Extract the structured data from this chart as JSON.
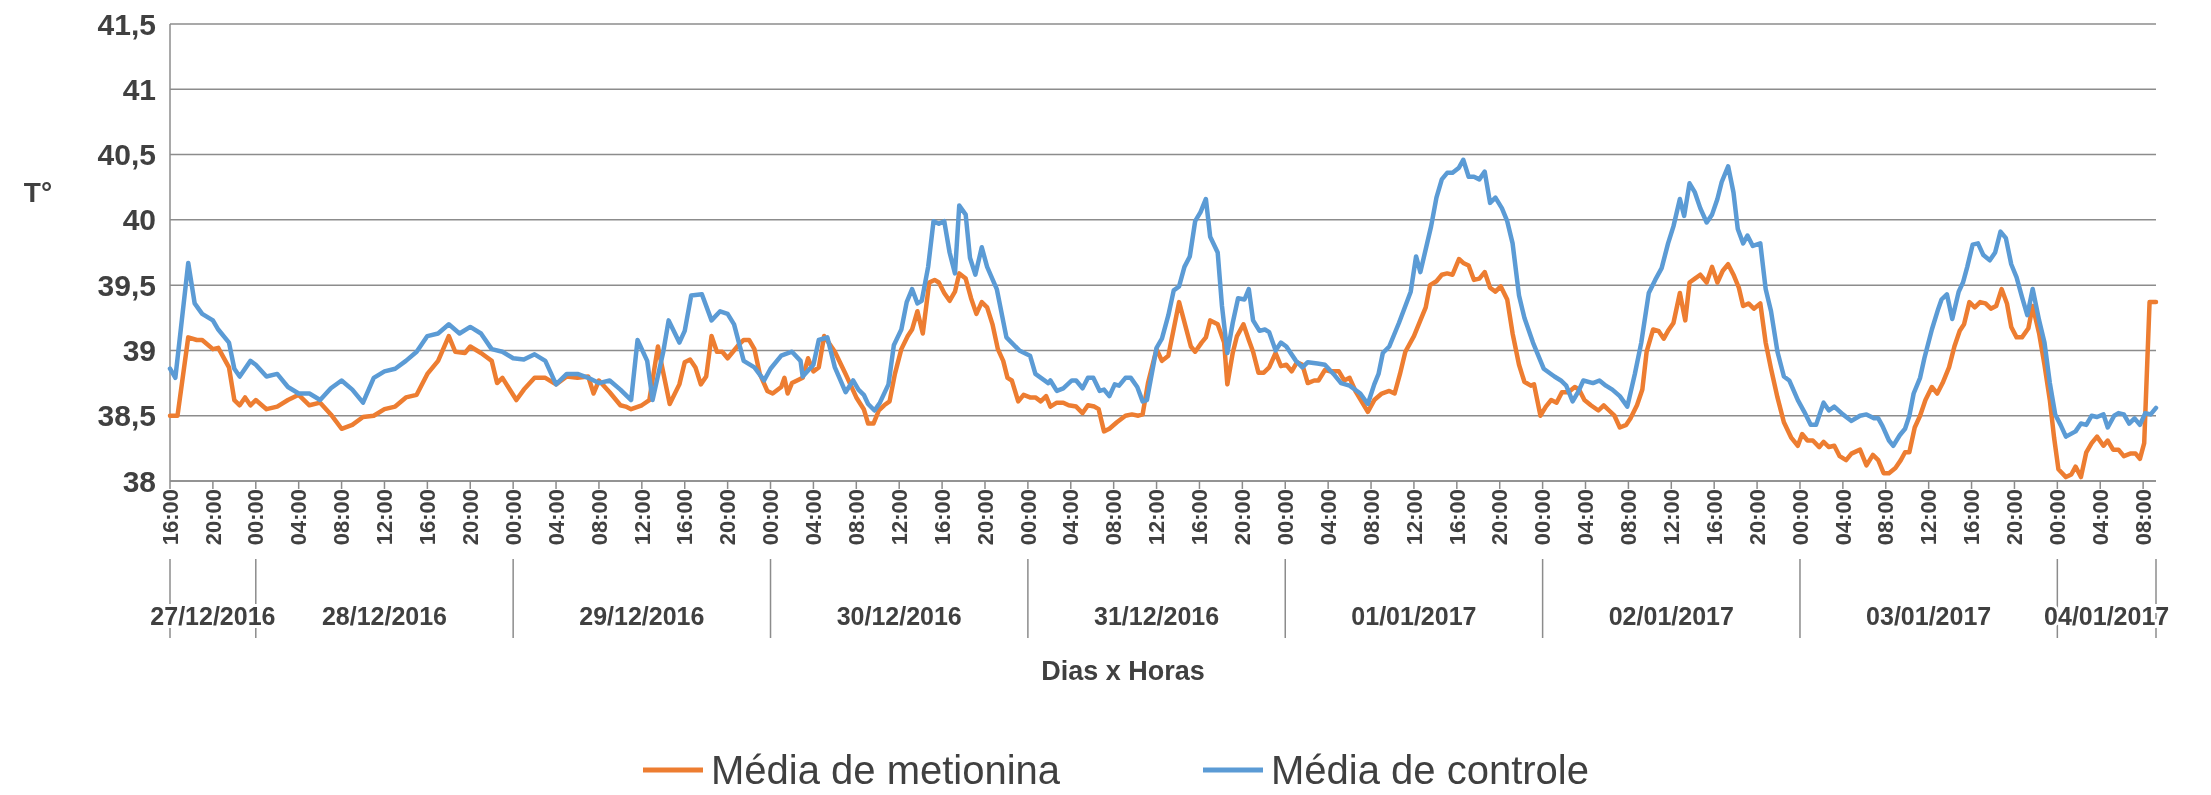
{
  "chart_data": {
    "type": "line",
    "xlabel": "Dias x Horas",
    "ylabel": "T°",
    "xlim": [
      "2016-12-27T16:00",
      "2017-01-04T09:12"
    ],
    "ylim": [
      38,
      41.5
    ],
    "yticks": [
      38,
      {
        "value": 38.5,
        "label": "38,5"
      },
      39,
      {
        "value": 39.5,
        "label": "39,5"
      },
      40,
      {
        "value": 40.5,
        "label": "40,5"
      },
      41,
      {
        "value": 41.5,
        "label": "41,5"
      }
    ],
    "xticks": [
      {
        "value": "2016-12-27T16:00",
        "label": "16:00"
      },
      {
        "value": "2016-12-27T20:00",
        "label": "20:00"
      },
      {
        "value": "2016-12-28T00:00",
        "label": "00:00"
      },
      {
        "value": "2016-12-28T04:00",
        "label": "04:00"
      },
      {
        "value": "2016-12-28T08:00",
        "label": "08:00"
      },
      {
        "value": "2016-12-28T12:00",
        "label": "12:00"
      },
      {
        "value": "2016-12-28T16:00",
        "label": "16:00"
      },
      {
        "value": "2016-12-28T20:00",
        "label": "20:00"
      },
      {
        "value": "2016-12-29T00:00",
        "label": "00:00"
      },
      {
        "value": "2016-12-29T04:00",
        "label": "04:00"
      },
      {
        "value": "2016-12-29T08:00",
        "label": "08:00"
      },
      {
        "value": "2016-12-29T12:00",
        "label": "12:00"
      },
      {
        "value": "2016-12-29T16:00",
        "label": "16:00"
      },
      {
        "value": "2016-12-29T20:00",
        "label": "20:00"
      },
      {
        "value": "2016-12-30T00:00",
        "label": "00:00"
      },
      {
        "value": "2016-12-30T04:00",
        "label": "04:00"
      },
      {
        "value": "2016-12-30T08:00",
        "label": "08:00"
      },
      {
        "value": "2016-12-30T12:00",
        "label": "12:00"
      },
      {
        "value": "2016-12-30T16:00",
        "label": "16:00"
      },
      {
        "value": "2016-12-30T20:00",
        "label": "20:00"
      },
      {
        "value": "2016-12-31T00:00",
        "label": "00:00"
      },
      {
        "value": "2016-12-31T04:00",
        "label": "04:00"
      },
      {
        "value": "2016-12-31T08:00",
        "label": "08:00"
      },
      {
        "value": "2016-12-31T12:00",
        "label": "12:00"
      },
      {
        "value": "2016-12-31T16:00",
        "label": "16:00"
      },
      {
        "value": "2016-12-31T20:00",
        "label": "20:00"
      },
      {
        "value": "2017-01-01T00:00",
        "label": "00:00"
      },
      {
        "value": "2017-01-01T04:00",
        "label": "04:00"
      },
      {
        "value": "2017-01-01T08:00",
        "label": "08:00"
      },
      {
        "value": "2017-01-01T12:00",
        "label": "12:00"
      },
      {
        "value": "2017-01-01T16:00",
        "label": "16:00"
      },
      {
        "value": "2017-01-01T20:00",
        "label": "20:00"
      },
      {
        "value": "2017-01-02T00:00",
        "label": "00:00"
      },
      {
        "value": "2017-01-02T04:00",
        "label": "04:00"
      },
      {
        "value": "2017-01-02T08:00",
        "label": "08:00"
      },
      {
        "value": "2017-01-02T12:00",
        "label": "12:00"
      },
      {
        "value": "2017-01-02T16:00",
        "label": "16:00"
      },
      {
        "value": "2017-01-02T20:00",
        "label": "20:00"
      },
      {
        "value": "2017-01-03T00:00",
        "label": "00:00"
      },
      {
        "value": "2017-01-03T04:00",
        "label": "04:00"
      },
      {
        "value": "2017-01-03T08:00",
        "label": "08:00"
      },
      {
        "value": "2017-01-03T12:00",
        "label": "12:00"
      },
      {
        "value": "2017-01-03T16:00",
        "label": "16:00"
      },
      {
        "value": "2017-01-03T20:00",
        "label": "20:00"
      },
      {
        "value": "2017-01-04T00:00",
        "label": "00:00"
      },
      {
        "value": "2017-01-04T04:00",
        "label": "04:00"
      },
      {
        "value": "2017-01-04T08:00",
        "label": "08:00"
      }
    ],
    "annotations": [
      "27/12/2016",
      "28/12/2016",
      "29/12/2016",
      "30/12/2016",
      "31/12/2016",
      "01/01/2017",
      "02/01/2017",
      "03/01/2017",
      "04/01/2017"
    ],
    "grid": "y",
    "legend": "bottom",
    "line_style": "solid",
    "marker": "none",
    "series": [
      {
        "name": "Média de metionina",
        "color": "#ed7d31",
        "x": [
          "2016-12-27T16:00",
          "2016-12-27T16:42",
          "2016-12-27T17:42",
          "2016-12-27T18:30",
          "2016-12-27T19:00",
          "2016-12-27T20:00",
          "2016-12-27T20:30",
          "2016-12-27T21:30",
          "2016-12-27T22:00",
          "2016-12-27T22:30",
          "2016-12-27T23:00",
          "2016-12-27T23:30",
          "2016-12-28T00:00",
          "2016-12-28T01:00",
          "2016-12-28T02:00",
          "2016-12-28T03:00",
          "2016-12-28T04:00",
          "2016-12-28T04:30",
          "2016-12-28T05:00",
          "2016-12-28T06:00",
          "2016-12-28T07:00",
          "2016-12-28T08:00",
          "2016-12-28T09:00",
          "2016-12-28T10:00",
          "2016-12-28T11:00",
          "2016-12-28T12:00",
          "2016-12-28T13:00",
          "2016-12-28T14:00",
          "2016-12-28T15:00",
          "2016-12-28T16:00",
          "2016-12-28T17:00",
          "2016-12-28T18:00",
          "2016-12-28T18:36",
          "2016-12-28T19:30",
          "2016-12-28T20:00",
          "2016-12-28T21:00",
          "2016-12-28T22:00",
          "2016-12-28T22:30",
          "2016-12-28T23:00",
          "2016-12-29T00:18",
          "2016-12-29T01:00",
          "2016-12-29T02:00",
          "2016-12-29T03:00",
          "2016-12-29T04:00",
          "2016-12-29T05:00",
          "2016-12-29T06:00",
          "2016-12-29T07:00",
          "2016-12-29T07:30",
          "2016-12-29T08:00",
          "2016-12-29T09:00",
          "2016-12-29T10:00",
          "2016-12-29T10:30",
          "2016-12-29T11:00",
          "2016-12-29T12:00",
          "2016-12-29T12:42",
          "2016-12-29T13:30",
          "2016-12-29T14:36",
          "2016-12-29T15:30",
          "2016-12-29T16:00",
          "2016-12-29T16:30",
          "2016-12-29T17:00",
          "2016-12-29T17:30",
          "2016-12-29T18:00",
          "2016-12-29T18:30",
          "2016-12-29T19:00",
          "2016-12-29T19:30",
          "2016-12-29T20:00",
          "2016-12-29T21:00",
          "2016-12-29T21:30",
          "2016-12-29T22:00",
          "2016-12-29T22:30",
          "2016-12-29T23:00",
          "2016-12-29T23:42",
          "2016-12-30T00:12",
          "2016-12-30T01:00",
          "2016-12-30T01:18",
          "2016-12-30T01:36",
          "2016-12-30T02:00",
          "2016-12-30T03:00",
          "2016-12-30T03:30",
          "2016-12-30T04:00",
          "2016-12-30T04:30",
          "2016-12-30T05:00",
          "2016-12-30T06:00",
          "2016-12-30T07:00",
          "2016-12-30T08:00",
          "2016-12-30T08:42",
          "2016-12-30T09:06",
          "2016-12-30T09:36",
          "2016-12-30T10:06",
          "2016-12-30T10:36",
          "2016-12-30T11:06",
          "2016-12-30T11:36",
          "2016-12-30T12:12",
          "2016-12-30T12:48",
          "2016-12-30T13:12",
          "2016-12-30T13:42",
          "2016-12-30T14:12",
          "2016-12-30T14:48",
          "2016-12-30T15:18",
          "2016-12-30T15:42",
          "2016-12-30T16:12",
          "2016-12-30T16:42",
          "2016-12-30T17:12",
          "2016-12-30T17:36",
          "2016-12-30T18:12",
          "2016-12-30T18:42",
          "2016-12-30T19:12",
          "2016-12-30T19:42",
          "2016-12-30T20:12",
          "2016-12-30T20:42",
          "2016-12-30T21:12",
          "2016-12-30T21:42",
          "2016-12-30T22:06",
          "2016-12-30T22:30",
          "2016-12-30T23:06",
          "2016-12-30T23:36",
          "2016-12-31T00:12",
          "2016-12-31T00:42",
          "2016-12-31T01:12",
          "2016-12-31T01:42",
          "2016-12-31T02:06",
          "2016-12-31T02:42",
          "2016-12-31T03:18",
          "2016-12-31T03:48",
          "2016-12-31T04:30",
          "2016-12-31T05:06",
          "2016-12-31T05:36",
          "2016-12-31T06:12",
          "2016-12-31T06:36",
          "2016-12-31T07:06",
          "2016-12-31T07:36",
          "2016-12-31T08:18",
          "2016-12-31T09:06",
          "2016-12-31T09:42",
          "2016-12-31T10:18",
          "2016-12-31T10:42",
          "2016-12-31T11:12",
          "2016-12-31T12:00",
          "2016-12-31T12:30",
          "2016-12-31T13:06",
          "2016-12-31T14:06",
          "2016-12-31T15:12",
          "2016-12-31T15:36",
          "2016-12-31T16:12",
          "2016-12-31T16:36",
          "2016-12-31T17:00",
          "2016-12-31T17:42",
          "2016-12-31T18:18",
          "2016-12-31T18:36",
          "2016-12-31T19:06",
          "2016-12-31T19:30",
          "2016-12-31T20:06",
          "2016-12-31T20:36",
          "2016-12-31T21:00",
          "2016-12-31T21:30",
          "2016-12-31T22:00",
          "2016-12-31T22:30",
          "2016-12-31T23:06",
          "2016-12-31T23:36",
          "2017-01-01T00:06",
          "2017-01-01T00:36",
          "2017-01-01T01:06",
          "2017-01-01T01:36",
          "2017-01-01T02:06",
          "2017-01-01T02:42",
          "2017-01-01T03:06",
          "2017-01-01T03:42",
          "2017-01-01T04:12",
          "2017-01-01T05:00",
          "2017-01-01T05:30",
          "2017-01-01T06:00",
          "2017-01-01T06:36",
          "2017-01-01T07:42",
          "2017-01-01T08:18",
          "2017-01-01T09:00",
          "2017-01-01T09:42",
          "2017-01-01T10:12",
          "2017-01-01T10:42",
          "2017-01-01T11:12",
          "2017-01-01T12:00",
          "2017-01-01T12:36",
          "2017-01-01T13:06",
          "2017-01-01T13:30",
          "2017-01-01T14:06",
          "2017-01-01T14:36",
          "2017-01-01T15:06",
          "2017-01-01T15:36",
          "2017-01-01T16:12",
          "2017-01-01T16:36",
          "2017-01-01T17:06",
          "2017-01-01T17:36",
          "2017-01-01T18:06",
          "2017-01-01T18:36",
          "2017-01-01T19:06",
          "2017-01-01T19:36",
          "2017-01-01T20:06",
          "2017-01-01T20:42",
          "2017-01-01T21:12",
          "2017-01-01T21:48",
          "2017-01-01T22:18",
          "2017-01-01T22:54",
          "2017-01-01T23:12",
          "2017-01-01T23:48",
          "2017-01-02T00:18",
          "2017-01-02T00:48",
          "2017-01-02T01:18",
          "2017-01-02T01:48",
          "2017-01-02T02:24",
          "2017-01-02T03:00",
          "2017-01-02T03:24",
          "2017-01-02T03:54",
          "2017-01-02T04:30",
          "2017-01-02T05:12",
          "2017-01-02T05:42",
          "2017-01-02T06:12",
          "2017-01-02T06:42",
          "2017-01-02T07:12",
          "2017-01-02T07:48",
          "2017-01-02T08:12",
          "2017-01-02T08:48",
          "2017-01-02T09:18",
          "2017-01-02T09:42",
          "2017-01-02T10:18",
          "2017-01-02T10:48",
          "2017-01-02T11:18",
          "2017-01-02T11:42",
          "2017-01-02T12:12",
          "2017-01-02T12:48",
          "2017-01-02T13:18",
          "2017-01-02T13:42",
          "2017-01-02T14:12",
          "2017-01-02T14:42",
          "2017-01-02T15:18",
          "2017-01-02T15:48",
          "2017-01-02T16:18",
          "2017-01-02T16:48",
          "2017-01-02T17:18",
          "2017-01-02T17:48",
          "2017-01-02T18:18",
          "2017-01-02T18:42",
          "2017-01-02T19:12",
          "2017-01-02T19:42",
          "2017-01-02T20:18",
          "2017-01-02T20:48",
          "2017-01-02T21:18",
          "2017-01-02T21:54",
          "2017-01-02T22:30",
          "2017-01-02T23:12",
          "2017-01-02T23:48",
          "2017-01-03T00:12",
          "2017-01-03T00:42",
          "2017-01-03T01:12",
          "2017-01-03T01:48",
          "2017-01-03T02:12",
          "2017-01-03T02:42",
          "2017-01-03T03:12",
          "2017-01-03T03:42",
          "2017-01-03T04:18",
          "2017-01-03T04:48",
          "2017-01-03T05:36",
          "2017-01-03T06:12",
          "2017-01-03T06:48",
          "2017-01-03T07:18",
          "2017-01-03T07:48",
          "2017-01-03T08:18",
          "2017-01-03T08:54",
          "2017-01-03T09:24",
          "2017-01-03T09:48",
          "2017-01-03T10:12",
          "2017-01-03T10:42",
          "2017-01-03T11:12",
          "2017-01-03T11:42",
          "2017-01-03T12:18",
          "2017-01-03T12:48",
          "2017-01-03T13:18",
          "2017-01-03T13:54",
          "2017-01-03T14:24",
          "2017-01-03T14:54",
          "2017-01-03T15:18",
          "2017-01-03T15:48",
          "2017-01-03T16:18",
          "2017-01-03T16:48",
          "2017-01-03T17:18",
          "2017-01-03T17:48",
          "2017-01-03T18:18",
          "2017-01-03T18:48",
          "2017-01-03T19:18",
          "2017-01-03T19:42",
          "2017-01-03T20:12",
          "2017-01-03T20:42",
          "2017-01-03T21:18",
          "2017-01-03T21:42",
          "2017-01-03T22:18",
          "2017-01-03T22:48",
          "2017-01-03T23:18",
          "2017-01-03T23:42",
          "2017-01-04T00:06",
          "2017-01-04T00:48",
          "2017-01-04T01:18",
          "2017-01-04T01:42",
          "2017-01-04T02:12",
          "2017-01-04T02:42",
          "2017-01-04T03:12",
          "2017-01-04T03:42",
          "2017-01-04T04:18",
          "2017-01-04T04:42",
          "2017-01-04T05:12",
          "2017-01-04T05:42",
          "2017-01-04T06:12",
          "2017-01-04T06:48",
          "2017-01-04T07:18",
          "2017-01-04T07:42",
          "2017-01-04T08:06",
          "2017-01-04T08:36",
          "2017-01-04T09:12"
        ],
        "values": [
          38.5,
          38.5,
          39.1,
          39.08,
          39.08,
          39.01,
          39.02,
          38.87,
          38.62,
          38.58,
          38.64,
          38.58,
          38.62,
          38.55,
          38.57,
          38.62,
          38.66,
          38.62,
          38.58,
          38.6,
          38.51,
          38.4,
          38.43,
          38.49,
          38.5,
          38.55,
          38.57,
          38.64,
          38.66,
          38.82,
          38.92,
          39.11,
          38.99,
          38.98,
          39.03,
          38.98,
          38.92,
          38.75,
          38.79,
          38.62,
          38.7,
          38.79,
          38.79,
          38.74,
          38.8,
          38.79,
          38.8,
          38.67,
          38.77,
          38.68,
          38.58,
          38.57,
          38.55,
          38.58,
          38.62,
          39.03,
          38.59,
          38.74,
          38.91,
          38.93,
          38.87,
          38.74,
          38.8,
          39.11,
          38.99,
          38.99,
          38.94,
          39.04,
          39.08,
          39.08,
          39.01,
          38.82,
          38.69,
          38.67,
          38.72,
          38.79,
          38.67,
          38.75,
          38.79,
          38.94,
          38.84,
          38.87,
          39.11,
          38.99,
          38.82,
          38.64,
          38.55,
          38.44,
          38.44,
          38.54,
          38.58,
          38.61,
          38.82,
          39.01,
          39.11,
          39.16,
          39.3,
          39.13,
          39.52,
          39.54,
          39.52,
          39.44,
          39.38,
          39.45,
          39.59,
          39.55,
          39.4,
          39.28,
          39.37,
          39.33,
          39.2,
          39.01,
          38.92,
          38.79,
          38.77,
          38.61,
          38.66,
          38.64,
          38.64,
          38.61,
          38.65,
          38.57,
          38.6,
          38.6,
          38.58,
          38.57,
          38.52,
          38.58,
          38.57,
          38.55,
          38.38,
          38.4,
          38.45,
          38.5,
          38.51,
          38.5,
          38.51,
          38.75,
          39.01,
          38.92,
          38.96,
          39.37,
          39.03,
          38.99,
          39.06,
          39.1,
          39.23,
          39.2,
          39.06,
          38.74,
          38.98,
          39.11,
          39.2,
          39.08,
          38.99,
          38.83,
          38.83,
          38.87,
          38.98,
          38.88,
          38.89,
          38.84,
          38.91,
          38.89,
          38.75,
          38.77,
          38.77,
          38.85,
          38.84,
          38.84,
          38.77,
          38.79,
          38.68,
          38.53,
          38.62,
          38.67,
          38.69,
          38.67,
          38.82,
          38.99,
          39.11,
          39.23,
          39.33,
          39.5,
          39.53,
          39.58,
          39.59,
          39.58,
          39.7,
          39.67,
          39.65,
          39.54,
          39.55,
          39.6,
          39.48,
          39.45,
          39.49,
          39.39,
          39.13,
          38.89,
          38.76,
          38.73,
          38.74,
          38.5,
          38.57,
          38.62,
          38.6,
          38.68,
          38.68,
          38.72,
          38.7,
          38.62,
          38.58,
          38.54,
          38.58,
          38.54,
          38.5,
          38.41,
          38.43,
          38.48,
          38.58,
          38.7,
          38.99,
          39.16,
          39.15,
          39.09,
          39.15,
          39.21,
          39.44,
          39.23,
          39.52,
          39.55,
          39.58,
          39.52,
          39.64,
          39.52,
          39.61,
          39.66,
          39.58,
          39.48,
          39.34,
          39.36,
          39.32,
          39.36,
          39.06,
          38.86,
          38.64,
          38.45,
          38.33,
          38.27,
          38.36,
          38.31,
          38.31,
          38.26,
          38.3,
          38.26,
          38.27,
          38.19,
          38.16,
          38.21,
          38.24,
          38.12,
          38.2,
          38.16,
          38.06,
          38.06,
          38.1,
          38.16,
          38.22,
          38.22,
          38.41,
          38.5,
          38.62,
          38.72,
          38.67,
          38.75,
          38.87,
          39.03,
          39.15,
          39.2,
          39.37,
          39.33,
          39.37,
          39.36,
          39.32,
          39.34,
          39.47,
          39.36,
          39.18,
          39.1,
          39.1,
          39.17,
          39.34,
          39.13,
          38.89,
          38.62,
          38.33,
          38.09,
          38.03,
          38.05,
          38.11,
          38.03,
          38.22,
          38.29,
          38.34,
          38.27,
          38.31,
          38.24,
          38.24,
          38.19,
          38.21,
          38.21,
          38.17,
          38.29,
          39.37,
          39.37
        ]
      },
      {
        "name": "Média de controle",
        "color": "#5b9bd5",
        "x": [
          "2016-12-27T16:00",
          "2016-12-27T16:30",
          "2016-12-27T17:42",
          "2016-12-27T18:18",
          "2016-12-27T19:00",
          "2016-12-27T20:00",
          "2016-12-27T20:30",
          "2016-12-27T21:30",
          "2016-12-27T22:00",
          "2016-12-27T22:30",
          "2016-12-27T23:30",
          "2016-12-28T00:00",
          "2016-12-28T01:00",
          "2016-12-28T02:00",
          "2016-12-28T03:00",
          "2016-12-28T04:00",
          "2016-12-28T05:00",
          "2016-12-28T06:00",
          "2016-12-28T07:00",
          "2016-12-28T08:00",
          "2016-12-28T09:00",
          "2016-12-28T10:00",
          "2016-12-28T11:00",
          "2016-12-28T12:00",
          "2016-12-28T13:00",
          "2016-12-28T14:00",
          "2016-12-28T15:00",
          "2016-12-28T16:00",
          "2016-12-28T17:00",
          "2016-12-28T18:00",
          "2016-12-28T19:00",
          "2016-12-28T20:00",
          "2016-12-28T21:00",
          "2016-12-28T22:00",
          "2016-12-28T23:00",
          "2016-12-29T00:00",
          "2016-12-29T01:00",
          "2016-12-29T02:00",
          "2016-12-29T03:00",
          "2016-12-29T04:00",
          "2016-12-29T05:00",
          "2016-12-29T06:00",
          "2016-12-29T07:00",
          "2016-12-29T08:00",
          "2016-12-29T09:00",
          "2016-12-29T10:00",
          "2016-12-29T11:00",
          "2016-12-29T11:36",
          "2016-12-29T12:30",
          "2016-12-29T13:00",
          "2016-12-29T14:00",
          "2016-12-29T14:30",
          "2016-12-29T15:30",
          "2016-12-29T16:00",
          "2016-12-29T16:36",
          "2016-12-29T17:36",
          "2016-12-29T18:30",
          "2016-12-29T19:18",
          "2016-12-29T20:00",
          "2016-12-29T20:36",
          "2016-12-29T21:30",
          "2016-12-29T22:30",
          "2016-12-29T23:24",
          "2016-12-30T00:00",
          "2016-12-30T01:00",
          "2016-12-30T02:00",
          "2016-12-30T02:48",
          "2016-12-30T03:00",
          "2016-12-30T04:00",
          "2016-12-30T04:30",
          "2016-12-30T05:18",
          "2016-12-30T06:00",
          "2016-12-30T07:00",
          "2016-12-30T07:42",
          "2016-12-30T08:12",
          "2016-12-30T08:42",
          "2016-12-30T09:06",
          "2016-12-30T09:42",
          "2016-12-30T10:12",
          "2016-12-30T11:00",
          "2016-12-30T11:30",
          "2016-12-30T12:12",
          "2016-12-30T12:42",
          "2016-12-30T13:12",
          "2016-12-30T13:42",
          "2016-12-30T14:06",
          "2016-12-30T14:42",
          "2016-12-30T15:12",
          "2016-12-30T15:42",
          "2016-12-30T16:12",
          "2016-12-30T16:42",
          "2016-12-30T17:12",
          "2016-12-30T17:36",
          "2016-12-30T18:12",
          "2016-12-30T18:36",
          "2016-12-30T19:06",
          "2016-12-30T19:42",
          "2016-12-30T20:12",
          "2016-12-30T21:06",
          "2016-12-30T22:00",
          "2016-12-30T23:12",
          "2016-12-31T00:12",
          "2016-12-31T00:42",
          "2016-12-31T01:54",
          "2016-12-31T02:06",
          "2016-12-31T02:42",
          "2016-12-31T03:18",
          "2016-12-31T04:06",
          "2016-12-31T04:30",
          "2016-12-31T05:06",
          "2016-12-31T05:36",
          "2016-12-31T06:06",
          "2016-12-31T06:42",
          "2016-12-31T07:06",
          "2016-12-31T07:36",
          "2016-12-31T08:06",
          "2016-12-31T08:30",
          "2016-12-31T09:06",
          "2016-12-31T09:36",
          "2016-12-31T10:12",
          "2016-12-31T10:42",
          "2016-12-31T11:06",
          "2016-12-31T12:00",
          "2016-12-31T12:30",
          "2016-12-31T13:06",
          "2016-12-31T13:36",
          "2016-12-31T14:06",
          "2016-12-31T14:36",
          "2016-12-31T15:06",
          "2016-12-31T15:36",
          "2016-12-31T16:06",
          "2016-12-31T16:36",
          "2016-12-31T17:00",
          "2016-12-31T17:42",
          "2016-12-31T18:06",
          "2016-12-31T18:36",
          "2016-12-31T19:06",
          "2016-12-31T19:36",
          "2016-12-31T20:12",
          "2016-12-31T20:36",
          "2016-12-31T21:00",
          "2016-12-31T21:36",
          "2016-12-31T22:06",
          "2016-12-31T22:30",
          "2016-12-31T23:06",
          "2016-12-31T23:36",
          "2017-01-01T00:06",
          "2017-01-01T01:00",
          "2017-01-01T01:36",
          "2017-01-01T02:06",
          "2017-01-01T03:00",
          "2017-01-01T03:42",
          "2017-01-01T04:30",
          "2017-01-01T05:12",
          "2017-01-01T06:00",
          "2017-01-01T07:00",
          "2017-01-01T07:42",
          "2017-01-01T08:18",
          "2017-01-01T08:42",
          "2017-01-01T09:06",
          "2017-01-01T09:42",
          "2017-01-01T10:36",
          "2017-01-01T11:12",
          "2017-01-01T11:42",
          "2017-01-01T12:12",
          "2017-01-01T12:36",
          "2017-01-01T13:36",
          "2017-01-01T14:06",
          "2017-01-01T14:36",
          "2017-01-01T15:06",
          "2017-01-01T15:36",
          "2017-01-01T16:12",
          "2017-01-01T16:36",
          "2017-01-01T17:06",
          "2017-01-01T17:36",
          "2017-01-01T18:06",
          "2017-01-01T18:36",
          "2017-01-01T19:06",
          "2017-01-01T19:36",
          "2017-01-01T20:12",
          "2017-01-01T20:42",
          "2017-01-01T21:12",
          "2017-01-01T21:48",
          "2017-01-01T22:18",
          "2017-01-01T23:06",
          "2017-01-02T00:06",
          "2017-01-02T01:06",
          "2017-01-02T01:42",
          "2017-01-02T02:12",
          "2017-01-02T02:48",
          "2017-01-02T03:18",
          "2017-01-02T03:48",
          "2017-01-02T04:42",
          "2017-01-02T05:18",
          "2017-01-02T05:54",
          "2017-01-02T06:30",
          "2017-01-02T07:12",
          "2017-01-02T07:54",
          "2017-01-02T08:36",
          "2017-01-02T09:12",
          "2017-01-02T09:54",
          "2017-01-02T10:30",
          "2017-01-02T11:06",
          "2017-01-02T11:42",
          "2017-01-02T12:12",
          "2017-01-02T12:48",
          "2017-01-02T13:12",
          "2017-01-02T13:42",
          "2017-01-02T14:12",
          "2017-01-02T14:42",
          "2017-01-02T15:18",
          "2017-01-02T15:48",
          "2017-01-02T16:18",
          "2017-01-02T16:42",
          "2017-01-02T17:18",
          "2017-01-02T17:48",
          "2017-01-02T18:12",
          "2017-01-02T18:42",
          "2017-01-02T19:06",
          "2017-01-02T19:36",
          "2017-01-02T20:18",
          "2017-01-02T20:48",
          "2017-01-02T21:18",
          "2017-01-02T21:54",
          "2017-01-02T22:30",
          "2017-01-02T23:00",
          "2017-01-02T23:48",
          "2017-01-03T00:24",
          "2017-01-03T01:00",
          "2017-01-03T01:30",
          "2017-01-03T02:12",
          "2017-01-03T02:42",
          "2017-01-03T03:12",
          "2017-01-03T04:00",
          "2017-01-03T04:48",
          "2017-01-03T05:36",
          "2017-01-03T06:12",
          "2017-01-03T06:54",
          "2017-01-03T07:18",
          "2017-01-03T07:42",
          "2017-01-03T08:18",
          "2017-01-03T08:42",
          "2017-01-03T09:18",
          "2017-01-03T09:48",
          "2017-01-03T10:12",
          "2017-01-03T10:36",
          "2017-01-03T11:12",
          "2017-01-03T11:36",
          "2017-01-03T12:18",
          "2017-01-03T12:54",
          "2017-01-03T13:12",
          "2017-01-03T13:42",
          "2017-01-03T14:12",
          "2017-01-03T14:48",
          "2017-01-03T15:12",
          "2017-01-03T15:36",
          "2017-01-03T16:06",
          "2017-01-03T16:36",
          "2017-01-03T17:06",
          "2017-01-03T17:42",
          "2017-01-03T18:12",
          "2017-01-03T18:42",
          "2017-01-03T19:12",
          "2017-01-03T19:42",
          "2017-01-03T20:12",
          "2017-01-03T20:42",
          "2017-01-03T21:12",
          "2017-01-03T21:42",
          "2017-01-03T22:18",
          "2017-01-03T22:48",
          "2017-01-03T23:18",
          "2017-01-03T23:48",
          "2017-01-04T00:18",
          "2017-01-04T00:48",
          "2017-01-04T01:42",
          "2017-01-04T02:12",
          "2017-01-04T02:42",
          "2017-01-04T03:12",
          "2017-01-04T03:42",
          "2017-01-04T04:18",
          "2017-01-04T04:42",
          "2017-01-04T05:18",
          "2017-01-04T05:42",
          "2017-01-04T06:12",
          "2017-01-04T06:42",
          "2017-01-04T07:12",
          "2017-01-04T07:42",
          "2017-01-04T08:12",
          "2017-01-04T08:42",
          "2017-01-04T09:12"
        ],
        "values": [
          38.86,
          38.79,
          39.67,
          39.36,
          39.28,
          39.23,
          39.16,
          39.06,
          38.86,
          38.8,
          38.92,
          38.89,
          38.8,
          38.82,
          38.72,
          38.67,
          38.67,
          38.62,
          38.71,
          38.77,
          38.7,
          38.6,
          38.79,
          38.84,
          38.86,
          38.92,
          38.99,
          39.11,
          39.13,
          39.2,
          39.13,
          39.18,
          39.13,
          39.01,
          38.99,
          38.94,
          38.93,
          38.97,
          38.92,
          38.74,
          38.82,
          38.82,
          38.79,
          38.75,
          38.77,
          38.7,
          38.62,
          39.08,
          38.92,
          38.62,
          38.99,
          39.23,
          39.06,
          39.15,
          39.42,
          39.43,
          39.23,
          39.3,
          39.28,
          39.2,
          38.92,
          38.87,
          38.77,
          38.86,
          38.96,
          38.99,
          38.92,
          38.8,
          38.89,
          39.08,
          39.1,
          38.87,
          38.68,
          38.77,
          38.7,
          38.66,
          38.59,
          38.54,
          38.6,
          38.74,
          39.04,
          39.16,
          39.37,
          39.47,
          39.36,
          39.38,
          39.64,
          39.99,
          39.97,
          39.99,
          39.75,
          39.59,
          40.11,
          40.04,
          39.71,
          39.58,
          39.79,
          39.64,
          39.47,
          39.1,
          39,
          38.96,
          38.82,
          38.75,
          38.77,
          38.69,
          38.71,
          38.77,
          38.77,
          38.71,
          38.79,
          38.79,
          38.69,
          38.7,
          38.65,
          38.74,
          38.73,
          38.79,
          38.79,
          38.72,
          38.61,
          38.62,
          39.02,
          39.09,
          39.27,
          39.46,
          39.49,
          39.64,
          39.72,
          39.99,
          40.06,
          40.16,
          39.87,
          39.75,
          39.34,
          38.98,
          39.21,
          39.4,
          39.39,
          39.47,
          39.23,
          39.15,
          39.16,
          39.14,
          39,
          39.06,
          39.03,
          38.92,
          38.87,
          38.91,
          38.9,
          38.89,
          38.82,
          38.75,
          38.73,
          38.67,
          38.59,
          38.74,
          38.82,
          38.98,
          39.03,
          39.21,
          39.34,
          39.45,
          39.72,
          39.6,
          39.95,
          40.17,
          40.31,
          40.36,
          40.36,
          40.4,
          40.46,
          40.33,
          40.33,
          40.31,
          40.37,
          40.13,
          40.17,
          40.09,
          39.99,
          39.82,
          39.42,
          39.25,
          39.06,
          38.86,
          38.8,
          38.77,
          38.73,
          38.61,
          38.68,
          38.77,
          38.75,
          38.77,
          38.73,
          38.7,
          38.65,
          38.57,
          38.82,
          39.06,
          39.44,
          39.54,
          39.63,
          39.82,
          39.95,
          40.16,
          40.03,
          40.28,
          40.21,
          40.09,
          39.98,
          40.04,
          40.16,
          40.29,
          40.41,
          40.21,
          39.93,
          39.82,
          39.88,
          39.8,
          39.82,
          39.47,
          39.3,
          38.99,
          38.8,
          38.77,
          38.62,
          38.53,
          38.43,
          38.43,
          38.6,
          38.54,
          38.57,
          38.51,
          38.46,
          38.5,
          38.51,
          38.48,
          38.48,
          38.42,
          38.31,
          38.27,
          38.35,
          38.4,
          38.5,
          38.67,
          38.79,
          38.94,
          39.16,
          39.32,
          39.39,
          39.43,
          39.24,
          39.45,
          39.52,
          39.64,
          39.81,
          39.82,
          39.73,
          39.69,
          39.75,
          39.91,
          39.86,
          39.66,
          39.56,
          39.41,
          39.27,
          39.47,
          39.23,
          39.06,
          38.75,
          38.51,
          38.43,
          38.34,
          38.38,
          38.44,
          38.43,
          38.5,
          38.49,
          38.51,
          38.41,
          38.5,
          38.52,
          38.51,
          38.44,
          38.48,
          38.43,
          38.52,
          38.51,
          38.56
        ]
      }
    ]
  }
}
